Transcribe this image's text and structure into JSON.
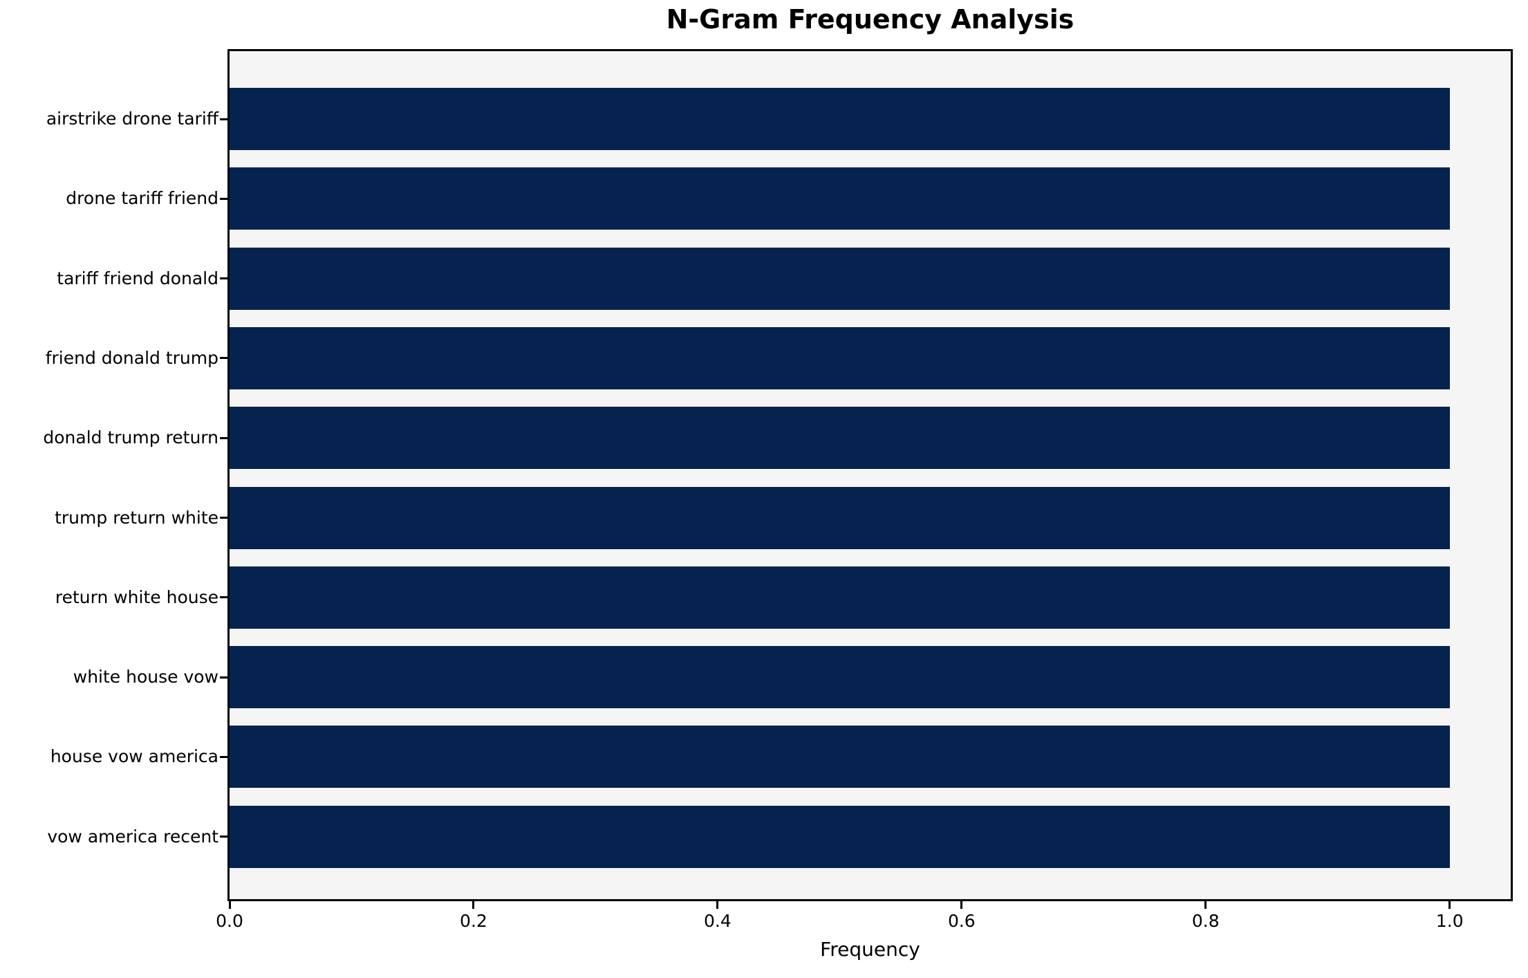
{
  "title": "N-Gram Frequency Analysis",
  "chart_data": {
    "type": "bar",
    "orientation": "horizontal",
    "title": "N-Gram Frequency Analysis",
    "xlabel": "Frequency",
    "ylabel": "",
    "categories": [
      "airstrike drone tariff",
      "drone tariff friend",
      "tariff friend donald",
      "friend donald trump",
      "donald trump return",
      "trump return white",
      "return white house",
      "white house vow",
      "house vow america",
      "vow america recent"
    ],
    "values": [
      1.0,
      1.0,
      1.0,
      1.0,
      1.0,
      1.0,
      1.0,
      1.0,
      1.0,
      1.0
    ],
    "xlim": [
      0.0,
      1.05
    ],
    "xticks": [
      0.0,
      0.2,
      0.4,
      0.6,
      0.8,
      1.0
    ],
    "xtick_labels": [
      "0.0",
      "0.2",
      "0.4",
      "0.6",
      "0.8",
      "1.0"
    ],
    "grid": false,
    "legend_position": "none",
    "colors": {
      "bar": "#05234e",
      "plot_background": "#f5f5f5",
      "figure_background": "#ffffff",
      "spine": "#000000",
      "text": "#000000"
    }
  }
}
